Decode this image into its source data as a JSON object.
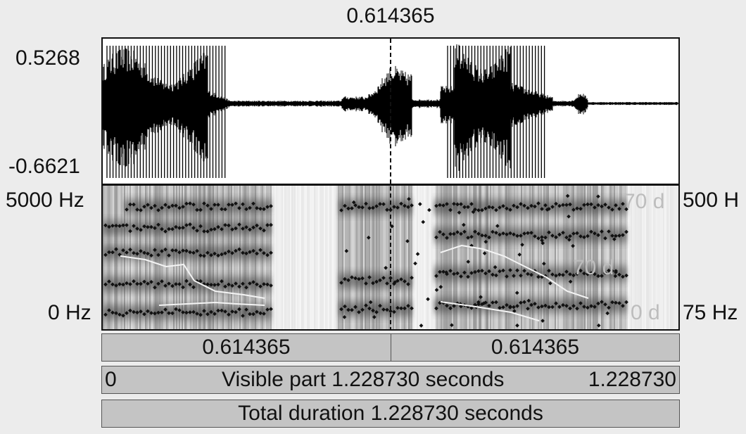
{
  "cursor": {
    "time_label": "0.614365"
  },
  "waveform": {
    "y_max_label": "0.5268",
    "y_min_label": "-0.6621"
  },
  "spectrogram": {
    "left_top_label": "5000 Hz",
    "left_bottom_label": "0 Hz",
    "right_top_label": "500 H",
    "right_bottom_label": "75 Hz",
    "ghost_top_label": "70 d",
    "ghost_mid_label": "70 d",
    "ghost_bottom_label": "0 d"
  },
  "timebar": {
    "left_segment_label": "0.614365",
    "right_segment_label": "0.614365"
  },
  "visible_bar": {
    "start_label": "0",
    "text": "Visible part 1.228730 seconds",
    "end_label": "1.228730"
  },
  "total_bar": {
    "text": "Total duration 1.228730 seconds"
  }
}
